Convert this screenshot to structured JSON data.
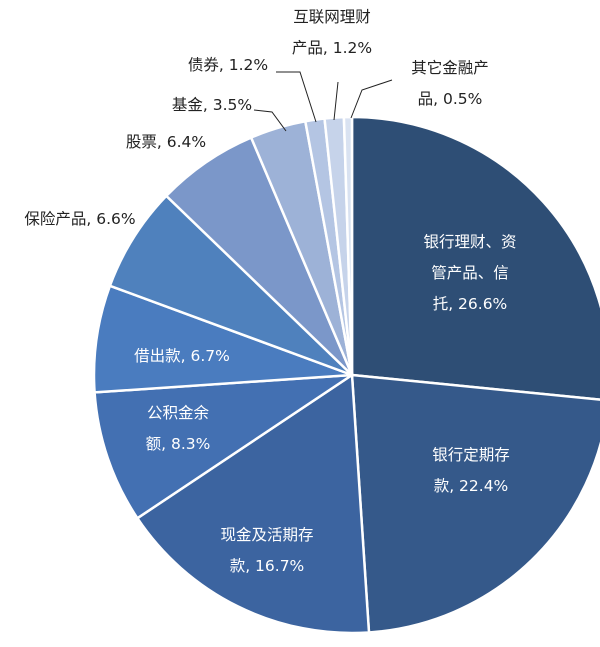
{
  "chart_data": {
    "type": "pie",
    "start_angle_deg": 0,
    "direction": "clockwise",
    "slices": [
      {
        "label": "银行理财、资管产品、信托, 26.6%",
        "lines": [
          "银行理财、资",
          "管产品、信",
          "托, 26.6%"
        ],
        "value": 26.6,
        "color": "#2e4e75",
        "label_color": "#ffffff"
      },
      {
        "label": "银行定期存款, 22.4%",
        "lines": [
          "银行定期存",
          "款, 22.4%"
        ],
        "value": 22.4,
        "color": "#35598a",
        "label_color": "#ffffff"
      },
      {
        "label": "现金及活期存款, 16.7%",
        "lines": [
          "现金及活期存",
          "款, 16.7%"
        ],
        "value": 16.7,
        "color": "#3c64a0",
        "label_color": "#ffffff"
      },
      {
        "label": "公积金余额, 8.3%",
        "lines": [
          "公积金余",
          "额, 8.3%"
        ],
        "value": 8.3,
        "color": "#4370b2",
        "label_color": "#ffffff"
      },
      {
        "label": "借出款, 6.7%",
        "lines": [
          "借出款, 6.7%"
        ],
        "value": 6.7,
        "color": "#4a7cbf",
        "label_color": "#ffffff"
      },
      {
        "label": "保险产品, 6.6%",
        "lines": [
          "保险产品, 6.6%"
        ],
        "value": 6.6,
        "color": "#4f81bd",
        "label_color": "#222222"
      },
      {
        "label": "股票, 6.4%",
        "lines": [
          "股票, 6.4%"
        ],
        "value": 6.4,
        "color": "#7b97c9",
        "label_color": "#222222"
      },
      {
        "label": "基金, 3.5%",
        "lines": [
          "基金, 3.5%"
        ],
        "value": 3.5,
        "color": "#9db2d7",
        "label_color": "#222222"
      },
      {
        "label": "债券, 1.2%",
        "lines": [
          "债券, 1.2%"
        ],
        "value": 1.2,
        "color": "#b4c5e3",
        "label_color": "#222222"
      },
      {
        "label": "互联网理财产品, 1.2%",
        "lines": [
          "互联网理财",
          "产品, 1.2%"
        ],
        "value": 1.2,
        "color": "#c6d3ea",
        "label_color": "#222222"
      },
      {
        "label": "其它金融产品, 0.5%",
        "lines": [
          "其它金融产",
          "品, 0.5%"
        ],
        "value": 0.5,
        "color": "#d9e2f1",
        "label_color": "#222222"
      }
    ]
  }
}
